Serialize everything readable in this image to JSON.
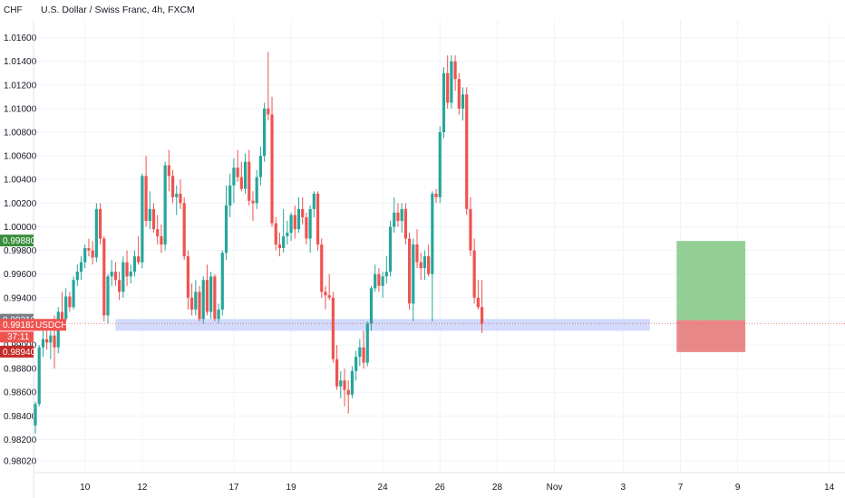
{
  "header": {
    "currency": "CHF",
    "title": "U.S. Dollar / Swiss Franc, 4h, FXCM"
  },
  "colors": {
    "up": "#26a69a",
    "down": "#ef5350",
    "grid": "#f0f3fa",
    "support_zone": "#c7d2fe",
    "take_profit": "#81c784",
    "stop_loss": "#e57373",
    "price_line": "#ef5350"
  },
  "chart_data": {
    "type": "candlestick",
    "symbol": "USDCHF",
    "timeframe": "4h",
    "y_axis": {
      "ylim": [
        0.9792,
        1.0175
      ],
      "ticks": [
        "1.01600",
        "1.01400",
        "1.01200",
        "1.01000",
        "1.00800",
        "1.00600",
        "1.00400",
        "1.00200",
        "1.00000",
        "0.99800",
        "0.99600",
        "0.99400",
        "0.99200",
        "0.99000",
        "0.98800",
        "0.98600",
        "0.98400",
        "0.98200",
        "0.98020"
      ]
    },
    "x_axis": {
      "ticks": [
        {
          "label": "10",
          "slot": 13
        },
        {
          "label": "12",
          "slot": 28
        },
        {
          "label": "17",
          "slot": 52
        },
        {
          "label": "19",
          "slot": 67
        },
        {
          "label": "24",
          "slot": 91
        },
        {
          "label": "26",
          "slot": 106
        },
        {
          "label": "28",
          "slot": 121
        },
        {
          "label": "Nov",
          "slot": 136
        },
        {
          "label": "3",
          "slot": 154
        },
        {
          "label": "7",
          "slot": 169
        },
        {
          "label": "9",
          "slot": 184
        },
        {
          "label": "14",
          "slot": 208
        }
      ]
    },
    "candles": [
      [
        0.9832,
        0.9852,
        0.9825,
        0.985
      ],
      [
        0.985,
        0.99,
        0.9848,
        0.9898
      ],
      [
        0.9898,
        0.9912,
        0.989,
        0.9905
      ],
      [
        0.9905,
        0.9918,
        0.9896,
        0.9902
      ],
      [
        0.9902,
        0.9912,
        0.9888,
        0.9908
      ],
      [
        0.9908,
        0.9925,
        0.988,
        0.9898
      ],
      [
        0.9898,
        0.9932,
        0.9893,
        0.9928
      ],
      [
        0.9928,
        0.9945,
        0.9918,
        0.9922
      ],
      [
        0.9922,
        0.9948,
        0.992,
        0.9941
      ],
      [
        0.9941,
        0.9945,
        0.9928,
        0.9932
      ],
      [
        0.9932,
        0.9958,
        0.993,
        0.9955
      ],
      [
        0.9955,
        0.9968,
        0.995,
        0.9962
      ],
      [
        0.9962,
        0.9975,
        0.9955,
        0.997
      ],
      [
        0.997,
        0.9985,
        0.9965,
        0.9982
      ],
      [
        0.9982,
        0.999,
        0.9975,
        0.998
      ],
      [
        0.998,
        0.9988,
        0.9968,
        0.9974
      ],
      [
        0.9974,
        1.002,
        0.997,
        1.0015
      ],
      [
        1.0015,
        1.002,
        0.9985,
        0.999
      ],
      [
        0.999,
        0.9992,
        0.992,
        0.9925
      ],
      [
        0.9925,
        0.996,
        0.9918,
        0.9958
      ],
      [
        0.9958,
        0.9972,
        0.995,
        0.9962
      ],
      [
        0.9962,
        0.997,
        0.995,
        0.9955
      ],
      [
        0.9955,
        0.9962,
        0.9938,
        0.9945
      ],
      [
        0.9945,
        0.9975,
        0.994,
        0.997
      ],
      [
        0.997,
        0.998,
        0.995,
        0.9958
      ],
      [
        0.9958,
        0.9968,
        0.9952,
        0.9962
      ],
      [
        0.9962,
        0.998,
        0.9958,
        0.9975
      ],
      [
        0.9975,
        0.9992,
        0.9968,
        0.997
      ],
      [
        0.997,
        1.0045,
        0.9965,
        1.0043
      ],
      [
        1.0043,
        1.006,
        1.0,
        1.0005
      ],
      [
        1.0005,
        1.003,
        0.9998,
        1.0015
      ],
      [
        1.0015,
        1.002,
        0.9995,
        0.9998
      ],
      [
        0.9998,
        1.001,
        0.9985,
        0.9992
      ],
      [
        0.9992,
        1.0002,
        0.9978,
        0.9985
      ],
      [
        0.9985,
        1.0055,
        0.998,
        1.0052
      ],
      [
        1.0052,
        1.0065,
        1.003,
        1.0043
      ],
      [
        1.0043,
        1.0048,
        1.002,
        1.0025
      ],
      [
        1.0025,
        1.0035,
        1.001,
        1.0028
      ],
      [
        1.0028,
        1.004,
        1.0015,
        1.002
      ],
      [
        1.002,
        1.0025,
        0.9972,
        0.9975
      ],
      [
        0.9975,
        0.998,
        0.993,
        0.994
      ],
      [
        0.994,
        0.9952,
        0.9925,
        0.993
      ],
      [
        0.993,
        0.9955,
        0.9925,
        0.9945
      ],
      [
        0.9945,
        0.995,
        0.992,
        0.9922
      ],
      [
        0.9922,
        0.9958,
        0.9918,
        0.9955
      ],
      [
        0.9955,
        0.9968,
        0.9925,
        0.9928
      ],
      [
        0.9928,
        0.9962,
        0.9922,
        0.9958
      ],
      [
        0.9958,
        0.996,
        0.992,
        0.9922
      ],
      [
        0.9922,
        0.9935,
        0.9918,
        0.993
      ],
      [
        0.993,
        0.998,
        0.9925,
        0.9978
      ],
      [
        0.9978,
        1.0035,
        0.9972,
        1.0018
      ],
      [
        1.0018,
        1.0045,
        1.0008,
        1.0035
      ],
      [
        1.0035,
        1.0058,
        1.002,
        1.005
      ],
      [
        1.005,
        1.0065,
        1.0038,
        1.0042
      ],
      [
        1.0042,
        1.0055,
        1.003,
        1.0032
      ],
      [
        1.0032,
        1.0062,
        1.0028,
        1.0055
      ],
      [
        1.0055,
        1.0065,
        1.0018,
        1.0022
      ],
      [
        1.0022,
        1.003,
        1.0005,
        1.002
      ],
      [
        1.002,
        1.0048,
        1.0015,
        1.0042
      ],
      [
        1.0042,
        1.0068,
        1.0035,
        1.006
      ],
      [
        1.006,
        1.0105,
        1.0055,
        1.01
      ],
      [
        1.01,
        1.0148,
        1.009,
        1.0095
      ],
      [
        1.0095,
        1.011,
        1.0,
        1.0003
      ],
      [
        1.0003,
        1.0008,
        0.998,
        0.9985
      ],
      [
        0.9985,
        0.9995,
        0.9975,
        0.9982
      ],
      [
        0.9982,
        1.0015,
        0.9978,
        0.9992
      ],
      [
        0.9992,
        1.0005,
        0.9985,
        0.9995
      ],
      [
        0.9995,
        1.0012,
        0.9988,
        1.001
      ],
      [
        1.001,
        1.0018,
        0.999,
        0.9998
      ],
      [
        0.9998,
        1.0025,
        0.9995,
        1.0015
      ],
      [
        1.0015,
        1.0025,
        1.0002,
        1.0008
      ],
      [
        1.0008,
        1.0012,
        0.9985,
        0.999
      ],
      [
        0.999,
        1.0018,
        0.9978,
        1.0015
      ],
      [
        1.0015,
        1.003,
        1.0008,
        1.0028
      ],
      [
        1.0028,
        1.003,
        0.998,
        0.9985
      ],
      [
        0.9985,
        0.999,
        0.994,
        0.9945
      ],
      [
        0.9945,
        0.995,
        0.993,
        0.9942
      ],
      [
        0.9942,
        0.996,
        0.9938,
        0.994
      ],
      [
        0.994,
        0.9945,
        0.9885,
        0.9888
      ],
      [
        0.9888,
        0.99,
        0.9862,
        0.9865
      ],
      [
        0.9865,
        0.9878,
        0.9855,
        0.987
      ],
      [
        0.987,
        0.988,
        0.9848,
        0.9862
      ],
      [
        0.9862,
        0.987,
        0.9842,
        0.9858
      ],
      [
        0.9858,
        0.9882,
        0.9855,
        0.9878
      ],
      [
        0.9878,
        0.9895,
        0.987,
        0.989
      ],
      [
        0.989,
        0.9905,
        0.9882,
        0.9898
      ],
      [
        0.9898,
        0.9912,
        0.988,
        0.9885
      ],
      [
        0.9885,
        0.992,
        0.9882,
        0.9918
      ],
      [
        0.9918,
        0.995,
        0.9912,
        0.9948
      ],
      [
        0.9948,
        0.9968,
        0.9945,
        0.996
      ],
      [
        0.996,
        0.9965,
        0.9945,
        0.995
      ],
      [
        0.995,
        0.9962,
        0.994,
        0.9958
      ],
      [
        0.9958,
        0.9975,
        0.9952,
        0.9962
      ],
      [
        0.9962,
        1.0005,
        0.9958,
        1.0
      ],
      [
        1.0,
        1.0025,
        0.9995,
        1.0012
      ],
      [
        1.0012,
        1.002,
        1.0,
        1.0005
      ],
      [
        1.0005,
        1.002,
        0.9995,
        1.0015
      ],
      [
        1.0015,
        1.002,
        0.9985,
        0.999
      ],
      [
        0.999,
        0.9995,
        0.993,
        0.9935
      ],
      [
        0.9935,
        0.999,
        0.992,
        0.9985
      ],
      [
        0.9985,
        0.9998,
        0.9965,
        0.997
      ],
      [
        0.997,
        0.9978,
        0.9955,
        0.9965
      ],
      [
        0.9965,
        0.998,
        0.9955,
        0.9975
      ],
      [
        0.9975,
        0.9985,
        0.9958,
        0.996
      ],
      [
        0.996,
        1.003,
        0.992,
        1.0028
      ],
      [
        1.0028,
        1.0032,
        1.002,
        1.0025
      ],
      [
        1.0025,
        1.0085,
        1.002,
        1.008
      ],
      [
        1.008,
        1.0135,
        1.0075,
        1.013
      ],
      [
        1.013,
        1.0145,
        1.01,
        1.0105
      ],
      [
        1.0105,
        1.0145,
        1.01,
        1.014
      ],
      [
        1.014,
        1.0145,
        1.0115,
        1.0125
      ],
      [
        1.0125,
        1.013,
        1.0095,
        1.01
      ],
      [
        1.01,
        1.0118,
        1.009,
        1.0112
      ],
      [
        1.0112,
        1.0118,
        1.001,
        1.0015
      ],
      [
        1.0015,
        1.0025,
        0.9975,
        0.998
      ],
      [
        0.998,
        0.999,
        0.9935,
        0.994
      ],
      [
        0.994,
        0.9955,
        0.993,
        0.9932
      ],
      [
        0.9932,
        0.9955,
        0.991,
        0.9918
      ]
    ],
    "support_zone": {
      "from": 0.9912,
      "to": 0.9922
    },
    "position": {
      "entry": 0.9921,
      "target": 0.9988,
      "stop": 0.9894
    },
    "last_price": 0.99182,
    "price_labels": {
      "target": "0.99880",
      "entry": "0.99210",
      "current": "0.99182",
      "symbol": "USDCHF",
      "countdown": "37:11",
      "stop": "0.98940"
    }
  }
}
